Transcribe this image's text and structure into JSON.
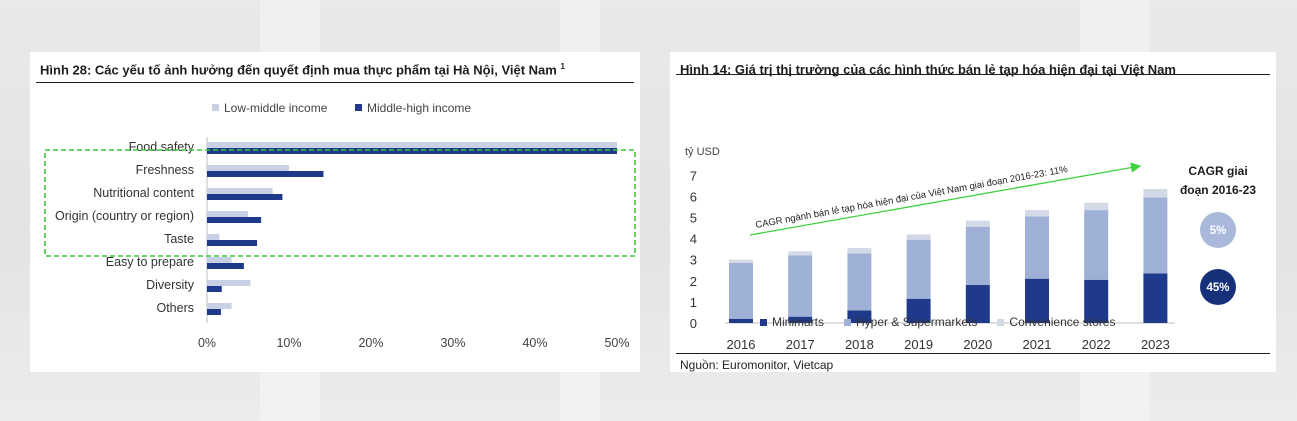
{
  "left_title": "Hình 28: Các yếu tố ảnh hưởng đến quyết định mua thực phẩm tại Hà Nội, Việt Nam",
  "left_title_sup": "1",
  "right_title": "Hình 14: Giá trị thị trường của các hình thức bán lẻ tạp hóa hiện đại tại Việt Nam",
  "source": "Nguồn: Euromonitor, Vietcap",
  "colors": {
    "dark_navy": "#1f3a8a",
    "light_periwinkle": "#c8d0e6",
    "mid_periwinkle": "#9fb0d6",
    "pale": "#d4d9e8",
    "navy_circle": "#16317a",
    "light_circle": "#aab8dc",
    "arrow_green": "#3fd13f",
    "dashed_box": "#3ec83e"
  },
  "chart_data": [
    {
      "type": "bar",
      "orientation": "horizontal",
      "categories": [
        "Food safety",
        "Freshness",
        "Nutritional content",
        "Origin (country or region)",
        "Taste",
        "Easy to prepare",
        "Diversity",
        "Others"
      ],
      "series": [
        {
          "name": "Low-middle income",
          "values": [
            50,
            10,
            8,
            5,
            1.5,
            3,
            5.3,
            3
          ]
        },
        {
          "name": "Middle-high income",
          "values": [
            50,
            14.2,
            9.2,
            6.6,
            6.1,
            4.5,
            1.8,
            1.7
          ]
        }
      ],
      "xlim": [
        0,
        50
      ],
      "xticks": [
        "0%",
        "10%",
        "20%",
        "30%",
        "40%",
        "50%"
      ],
      "legend": "top"
    },
    {
      "type": "bar",
      "stacked": true,
      "categories": [
        "2016",
        "2017",
        "2018",
        "2019",
        "2020",
        "2021",
        "2022",
        "2023"
      ],
      "series": [
        {
          "name": "Minimarts",
          "values": [
            0.2,
            0.3,
            0.6,
            1.15,
            1.8,
            2.1,
            2.05,
            2.35
          ]
        },
        {
          "name": "Hyper & Supermarkets",
          "values": [
            2.65,
            2.9,
            2.7,
            2.8,
            2.75,
            2.95,
            3.3,
            3.6
          ]
        },
        {
          "name": "Convenience stores",
          "values": [
            0.15,
            0.2,
            0.25,
            0.25,
            0.3,
            0.3,
            0.35,
            0.4
          ]
        }
      ],
      "ylim": [
        0,
        7
      ],
      "yticks": [
        "0",
        "1",
        "2",
        "3",
        "4",
        "5",
        "6",
        "7"
      ],
      "ylabel": "tỷ USD",
      "annotation": "CAGR ngành bán lẻ tạp hóa hiện đại của Việt Nam giai đoạn 2016-23: 11%",
      "cagr_header": [
        "CAGR giai",
        "đoạn 2016-23"
      ],
      "cagr_values": [
        "5%",
        "45%"
      ],
      "legend": "bottom"
    }
  ]
}
